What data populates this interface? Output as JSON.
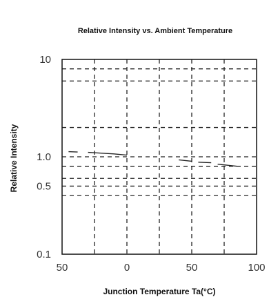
{
  "chart_data": {
    "type": "line",
    "title": "Relative Intensity vs. Ambient Temperature",
    "xlabel": "Junction Temperature Ta(°C)",
    "ylabel": "Relative Intensity",
    "x_scale": "linear",
    "y_scale": "log",
    "xlim": [
      -50,
      100
    ],
    "ylim": [
      0.1,
      10
    ],
    "x_ticks": [
      {
        "value": -50,
        "label": "50"
      },
      {
        "value": 0,
        "label": "0"
      },
      {
        "value": 50,
        "label": "50"
      },
      {
        "value": 100,
        "label": "100"
      }
    ],
    "y_ticks": [
      {
        "value": 10,
        "label": "10"
      },
      {
        "value": 1,
        "label": "1.0"
      },
      {
        "value": 0.5,
        "label": "0.5"
      },
      {
        "value": 0.1,
        "label": "0.1"
      }
    ],
    "x_gridlines": [
      -25,
      0,
      25,
      50,
      75
    ],
    "y_gridlines": [
      8,
      6,
      2,
      0.8,
      0.6,
      0.4
    ],
    "grid": true,
    "grid_style": "dashed",
    "series": [
      {
        "color": "#222222",
        "segments": [
          {
            "x": [
              -45,
              -38
            ],
            "y": [
              1.13,
              1.12
            ]
          },
          {
            "x": [
              -30,
              -10,
              0
            ],
            "y": [
              1.11,
              1.07,
              1.04
            ]
          },
          {
            "x": [
              40,
              50
            ],
            "y": [
              0.93,
              0.9
            ]
          },
          {
            "x": [
              55,
              65
            ],
            "y": [
              0.88,
              0.87
            ]
          },
          {
            "x": [
              70,
              85
            ],
            "y": [
              0.84,
              0.8
            ]
          }
        ]
      }
    ]
  }
}
